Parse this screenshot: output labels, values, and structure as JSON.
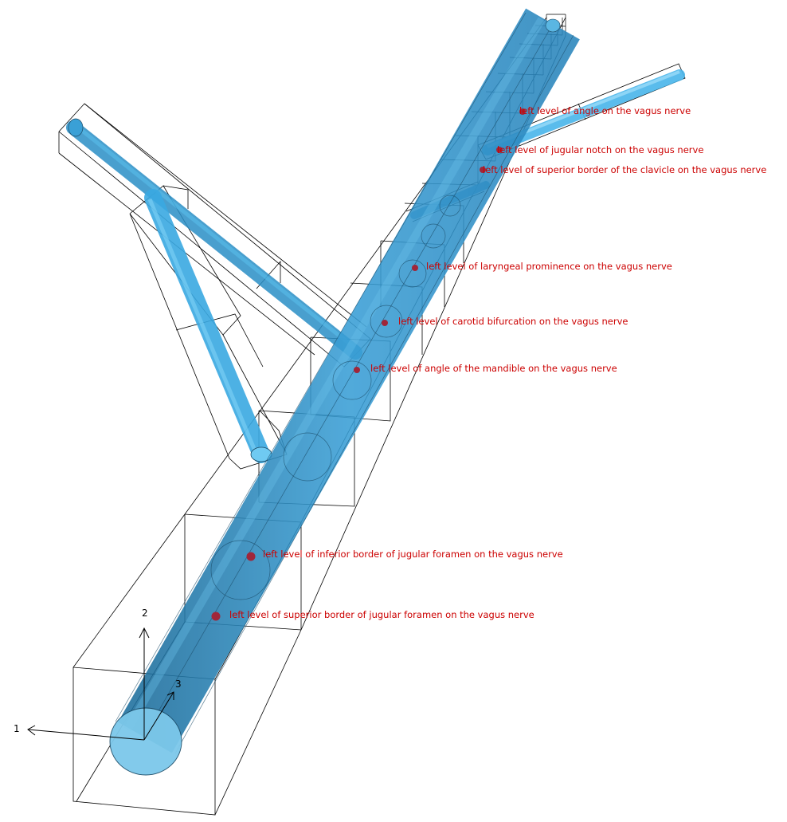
{
  "colors": {
    "tube_main": "#2f8fc4",
    "tube_light": "#4db4e6",
    "tube_dark": "#1d6f9e",
    "marker": "#a0263a",
    "label": "#cc0000",
    "wire": "#000000"
  },
  "axes": {
    "x_label": "1",
    "y_label": "2",
    "z_label": "3"
  },
  "markers": [
    {
      "label": "left level of angle on the vagus nerve"
    },
    {
      "label": "left level of jugular notch on the vagus nerve"
    },
    {
      "label": "left level of superior border of the clavicle on the vagus nerve"
    },
    {
      "label": "left level of laryngeal prominence on the vagus nerve"
    },
    {
      "label": "left level of carotid bifurcation on the vagus nerve"
    },
    {
      "label": "left level of angle of the mandible on the vagus nerve"
    },
    {
      "label": "left level of inferior border of jugular foramen on the vagus nerve"
    },
    {
      "label": "left level of superior border of jugular foramen on the vagus nerve"
    }
  ]
}
